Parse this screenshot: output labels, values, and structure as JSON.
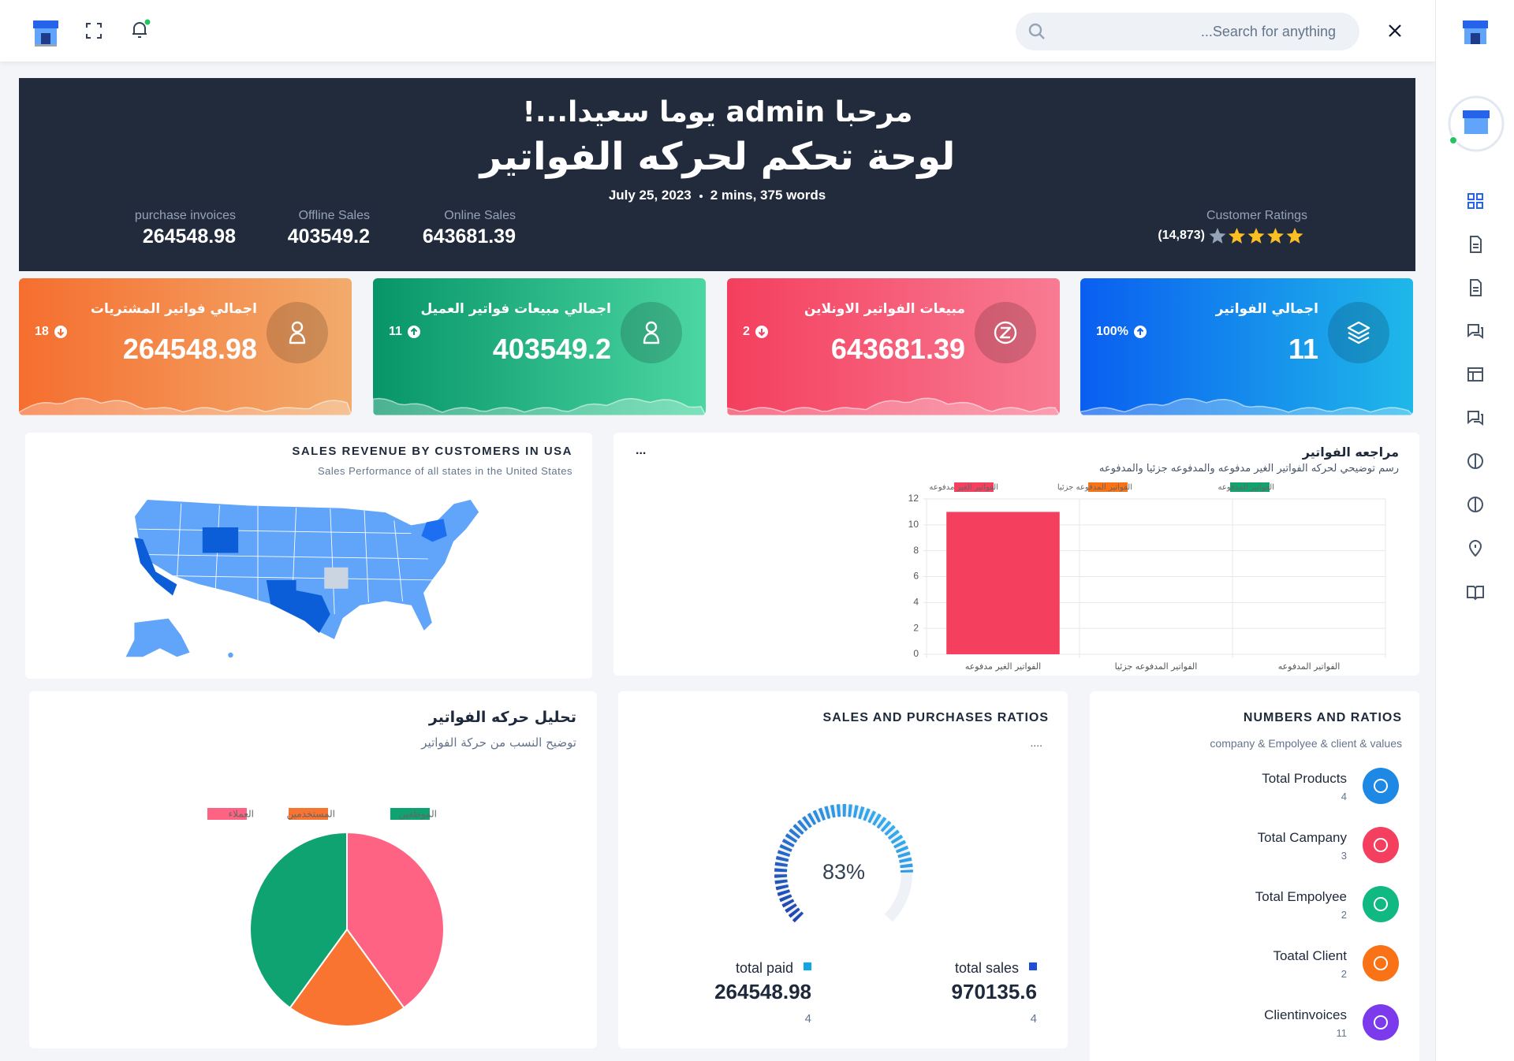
{
  "header": {
    "search_placeholder": "...Search for anything"
  },
  "hero": {
    "greeting": "مرحبا admin يوما سعيدا...!",
    "title": "لوحة تحكم لحركه الفواتير",
    "date": "July 25, 2023",
    "read_time": "2 mins, 375 words",
    "stats": [
      {
        "label": "purchase invoices",
        "value": "264548.98"
      },
      {
        "label": "Offline Sales",
        "value": "403549.2"
      },
      {
        "label": "Online Sales",
        "value": "643681.39"
      }
    ],
    "ratings": {
      "label": "Customer Ratings",
      "count": "(14,873)",
      "rating": 4,
      "max": 5
    }
  },
  "cards": [
    {
      "title": "اجمالي فواتير المشتريات",
      "value": "264548.98",
      "badge": "18",
      "trend": "down",
      "colors": [
        "#f56e2f",
        "#f2ab6c"
      ]
    },
    {
      "title": "اجمالي مبيعات فواتير العميل",
      "value": "403549.2",
      "badge": "11",
      "trend": "up",
      "colors": [
        "#079568",
        "#4cd6a3"
      ]
    },
    {
      "title": "مبيعات الفواتير الاونلاين",
      "value": "643681.39",
      "badge": "2",
      "trend": "down",
      "colors": [
        "#f43f5e",
        "#f87b93"
      ]
    },
    {
      "title": "اجمالي الفواتير",
      "value": "11",
      "badge": "100%",
      "trend": "up",
      "colors": [
        "#0a5ef0",
        "#1fb8e9"
      ]
    }
  ],
  "map_card": {
    "title": "SALES REVENUE BY CUSTOMERS IN USA",
    "subtitle": "Sales Performance of all states in the United States"
  },
  "bar_card": {
    "title": "مراجعه الفواتير",
    "subtitle": "رسم توضيحي لحركه الفواتير الغير مدفوعه والمدفوعه جزئيا والمدفوعه",
    "menu": "...",
    "chart": {
      "type": "bar",
      "categories": [
        "الفواتير الغير مدفوعه",
        "الفواتير المدفوعه جزئيا",
        "الفواتير المدفوعه"
      ],
      "values": [
        11,
        0,
        0
      ],
      "colors": [
        "#f43f5e",
        "#f97316",
        "#10a36e"
      ],
      "ylim": [
        0,
        12
      ],
      "yticks": [
        0,
        2,
        4,
        6,
        8,
        10,
        12
      ],
      "grid": true
    }
  },
  "pie_card": {
    "title": "تحليل حركه الفواتير",
    "subtitle": "توضيح النسب من حركة الفواتير",
    "chart": {
      "type": "pie",
      "categories": [
        "العملاء",
        "المستخدمين",
        "الموظفين"
      ],
      "values": [
        2,
        1,
        2
      ],
      "colors": [
        "#ff6384",
        "#f97331",
        "#0ea371"
      ]
    }
  },
  "donut_card": {
    "title": "SALES AND PURCHASES RATIOS",
    "menu": "....",
    "chart": {
      "type": "gauge",
      "values": [
        83
      ],
      "value_labels": [
        "83%"
      ],
      "ylim": [
        0,
        100
      ]
    },
    "items": [
      {
        "label": "total paid",
        "value": "264548.98",
        "count": "4",
        "color": "#0ea5e9"
      },
      {
        "label": "total sales",
        "value": "970135.6",
        "count": "4",
        "color": "#1d4ed8"
      }
    ]
  },
  "numbers_card": {
    "title": "NUMBERS AND RATIOS",
    "subtitle": "company & Empolyee & client & values",
    "items": [
      {
        "label": "Total Products",
        "value": "4",
        "color": "#1e88e5"
      },
      {
        "label": "Total Campany",
        "value": "3",
        "color": "#f43f5e"
      },
      {
        "label": "Total Empolyee",
        "value": "2",
        "color": "#10b981"
      },
      {
        "label": "Toatal Client",
        "value": "2",
        "color": "#f97316"
      },
      {
        "label": "Clientinvoices",
        "value": "11",
        "color": "#7c3aed"
      }
    ]
  }
}
